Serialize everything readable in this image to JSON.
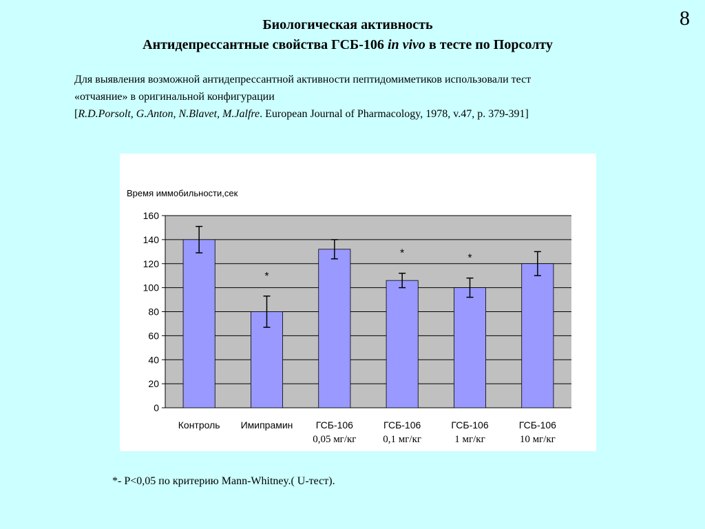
{
  "page_number": "8",
  "title": {
    "line1": "Биологическая активность",
    "line2_part1": "Антидепрессантные свойства ГСБ-106 ",
    "line2_italic": "in vivo",
    "line2_part2": " в тесте по Порсолту"
  },
  "intro": {
    "line1": "Для выявления возможной антидепрессантной активности пептидомиметиков использовали тест",
    "line2": "«отчаяние» в оригинальной конфигурации",
    "ref_open": "[",
    "ref_authors": "R.D.Porsolt, G.Anton, N.Blavet, M.Jalfre",
    "ref_rest": ". European Journal of Pharmacology, 1978, v.47, p. 379-391]"
  },
  "footnote": "*- P<0,05 по критерию  Mann-Whitney.( U-тест).",
  "chart_data": {
    "type": "bar",
    "ylabel": "Время иммобильности,сек",
    "ylim": [
      0,
      160
    ],
    "yticks": [
      0,
      20,
      40,
      60,
      80,
      100,
      120,
      140,
      160
    ],
    "grid": true,
    "bar_color": "#9999ff",
    "plot_bg": "#c0c0c0",
    "categories": [
      {
        "line1": "Контроль",
        "line2": ""
      },
      {
        "line1": "Имипрамин",
        "line2": ""
      },
      {
        "line1": "ГСБ-106",
        "line2": "0,05 мг/кг"
      },
      {
        "line1": "ГСБ-106",
        "line2": "0,1 мг/кг"
      },
      {
        "line1": "ГСБ-106",
        "line2": "1 мг/кг"
      },
      {
        "line1": "ГСБ-106",
        "line2": "10 мг/кг"
      }
    ],
    "values": [
      140,
      80,
      132,
      106,
      100,
      120
    ],
    "error": [
      11,
      13,
      8,
      6,
      8,
      10
    ],
    "significance": [
      "",
      "*",
      "",
      "*",
      "*",
      ""
    ]
  }
}
